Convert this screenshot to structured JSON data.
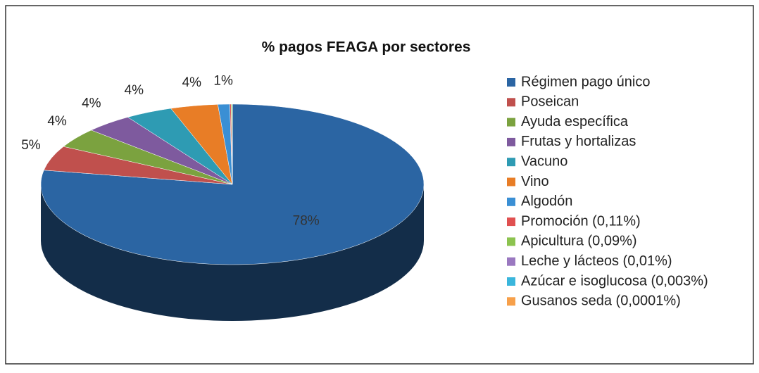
{
  "chart_data": {
    "type": "pie",
    "title": "% pagos FEAGA por sectores",
    "categories": [
      "Régimen pago único",
      "Poseican",
      "Ayuda específica",
      "Frutas y hortalizas",
      "Vacuno",
      "Vino",
      "Algodón",
      "Promoción (0,11%)",
      "Apicultura (0,09%)",
      "Leche y lácteos (0,01%)",
      "Azúcar e isoglucosa (0,003%)",
      "Gusanos seda (0,0001%)"
    ],
    "values": [
      78,
      5,
      4,
      4,
      4,
      4,
      1,
      0.11,
      0.09,
      0.01,
      0.003,
      0.0001
    ],
    "value_labels": [
      "78%",
      "5%",
      "4%",
      "4%",
      "4%",
      "4%",
      "1%",
      null,
      null,
      null,
      null,
      null
    ],
    "colors": [
      "#2b65a3",
      "#c0504d",
      "#7ba23f",
      "#7e5a9e",
      "#2e9bb3",
      "#e87d26",
      "#3a8fd4",
      "#e05050",
      "#8cc34f",
      "#9a78c0",
      "#3ab6dc",
      "#f7a04a"
    ],
    "legend": "right"
  }
}
